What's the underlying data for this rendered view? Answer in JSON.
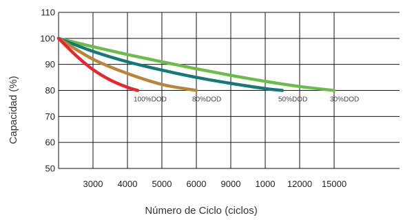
{
  "chart_data": {
    "type": "line",
    "title": "",
    "xlabel": "Número de Ciclo (ciclos)",
    "ylabel": "Capacidad (%)",
    "ylim": [
      50,
      110
    ],
    "y_ticks": [
      "110",
      "100",
      "90",
      "80",
      "70",
      "60",
      "50"
    ],
    "x_ticks": [
      "3000",
      "4000",
      "5000",
      "6000",
      "9000",
      "1000",
      "12000",
      "15000"
    ],
    "grid": true,
    "x_axis_note": "x tick positions are evenly spaced; x values below are expressed in tick-index units (tick 0 = '3000', tick 7 = '15000'; axis starts at index -1)",
    "xlim": [
      -1,
      8.9
    ],
    "series": [
      {
        "name": "100%DOD",
        "color": "#e8262c",
        "x": [
          -1,
          -0.5,
          0,
          0.5,
          1,
          1.3
        ],
        "y": [
          100,
          93.5,
          88,
          84,
          81.2,
          80
        ]
      },
      {
        "name": "80%DOD",
        "color": "#b8863a",
        "x": [
          -1,
          0,
          1,
          2,
          3
        ],
        "y": [
          100,
          92,
          86.5,
          82.3,
          80
        ]
      },
      {
        "name": "50%DOD",
        "color": "#137a78",
        "x": [
          -1,
          0,
          1,
          2,
          3,
          4,
          5,
          5.5
        ],
        "y": [
          100,
          95,
          91,
          87.8,
          85,
          82.7,
          80.7,
          80
        ]
      },
      {
        "name": "30%DOD",
        "color": "#6bbd4a",
        "x": [
          -1,
          0,
          1,
          2,
          3,
          4,
          5,
          6,
          7
        ],
        "y": [
          100,
          96.8,
          93.8,
          91,
          88.3,
          85.8,
          83.5,
          81.5,
          80
        ]
      }
    ],
    "series_labels": [
      "100%DOD",
      "80%DOD",
      "50%DOD",
      "30%DOD"
    ]
  }
}
